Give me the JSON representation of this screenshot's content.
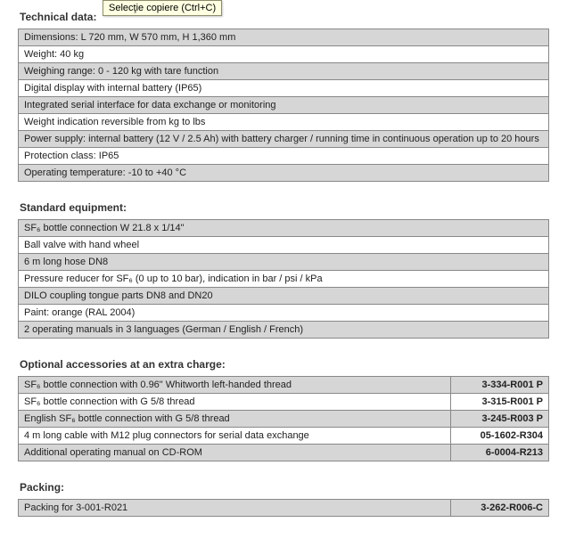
{
  "tooltip": "Selecţie copiere (Ctrl+C)",
  "technical": {
    "title": "Technical data:",
    "rows": [
      "Dimensions: L 720 mm, W 570 mm, H 1,360 mm",
      "Weight: 40 kg",
      "Weighing range: 0 - 120 kg with tare function",
      "Digital display with internal battery (IP65)",
      "Integrated serial interface for data exchange or monitoring",
      "Weight indication reversible from kg to lbs",
      "Power supply: internal battery (12 V / 2.5 Ah) with battery charger / running time in continuous operation up to 20 hours",
      "Protection class: IP65",
      "Operating temperature: -10 to +40 °C"
    ]
  },
  "standard": {
    "title": "Standard equipment:",
    "rows": [
      "SF₆ bottle connection W 21.8 x 1/14\"",
      "Ball valve with hand wheel",
      "6 m long hose DN8",
      "Pressure reducer for SF₆ (0 up to 10 bar), indication in bar / psi / kPa",
      "DILO coupling tongue parts DN8 and DN20",
      "Paint: orange (RAL 2004)",
      "2 operating manuals in 3 languages (German / English / French)"
    ]
  },
  "optional": {
    "title": "Optional accessories at an extra charge:",
    "rows": [
      {
        "desc": "SF₆ bottle connection with 0.96\" Whitworth left-handed thread",
        "code": "3-334-R001 P"
      },
      {
        "desc": "SF₆ bottle connection with G 5/8 thread",
        "code": "3-315-R001 P"
      },
      {
        "desc": "English SF₆ bottle connection with G 5/8 thread",
        "code": "3-245-R003 P"
      },
      {
        "desc": "4 m long cable with M12 plug connectors for serial data exchange",
        "code": "05-1602-R304"
      },
      {
        "desc": "Additional operating manual on CD-ROM",
        "code": "6-0004-R213"
      }
    ]
  },
  "packing": {
    "title": "Packing:",
    "rows": [
      {
        "desc": "Packing for 3-001-R021",
        "code": "3-262-R006-C"
      }
    ]
  },
  "shading": {
    "technical": [
      "shaded",
      "plain",
      "shaded",
      "plain",
      "shaded",
      "plain",
      "shaded",
      "plain",
      "shaded"
    ],
    "standard": [
      "shaded",
      "plain",
      "shaded",
      "plain",
      "shaded",
      "plain",
      "shaded"
    ],
    "optional": [
      "shaded",
      "plain",
      "shaded",
      "plain",
      "shaded"
    ],
    "packing": [
      "shaded"
    ]
  }
}
